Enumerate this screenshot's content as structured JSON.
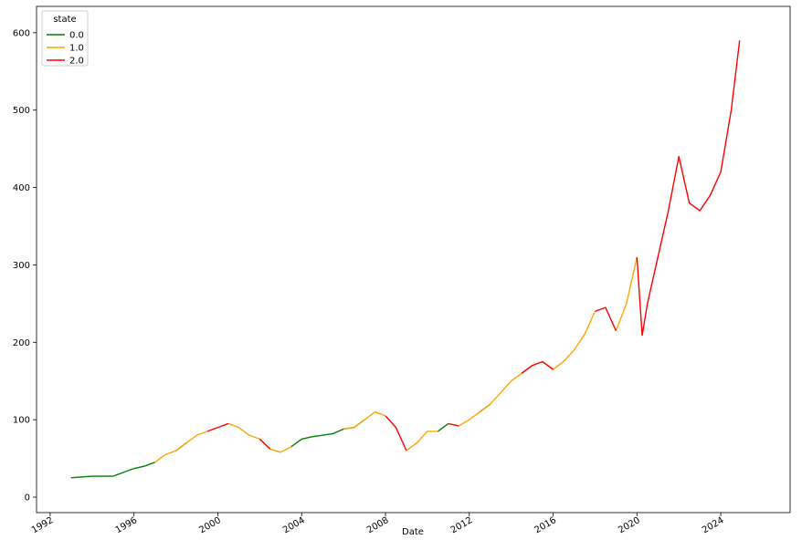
{
  "chart_data": {
    "type": "line",
    "x_label": "Date",
    "legend_title": "state",
    "legend": "upper left",
    "x": [
      1993.0,
      1993.5,
      1994.0,
      1994.5,
      1995.0,
      1995.5,
      1996.0,
      1996.5,
      1997.0,
      1997.5,
      1998.0,
      1998.5,
      1999.0,
      1999.5,
      2000.0,
      2000.5,
      2001.0,
      2001.5,
      2002.0,
      2002.5,
      2003.0,
      2003.5,
      2004.0,
      2004.5,
      2005.0,
      2005.5,
      2006.0,
      2006.5,
      2007.0,
      2007.5,
      2008.0,
      2008.5,
      2009.0,
      2009.5,
      2010.0,
      2010.5,
      2011.0,
      2011.5,
      2012.0,
      2012.5,
      2013.0,
      2013.5,
      2014.0,
      2014.5,
      2015.0,
      2015.5,
      2016.0,
      2016.5,
      2017.0,
      2017.5,
      2018.0,
      2018.5,
      2019.0,
      2019.5,
      2020.0,
      2020.25,
      2020.5,
      2021.0,
      2021.5,
      2022.0,
      2022.5,
      2023.0,
      2023.5,
      2024.0,
      2024.5,
      2024.9
    ],
    "series": [
      {
        "name": "0.0",
        "color": "#008000",
        "values": [
          25,
          26,
          27,
          27,
          27,
          32,
          37,
          40,
          45,
          null,
          60,
          70,
          null,
          null,
          null,
          null,
          null,
          null,
          null,
          null,
          null,
          65,
          75,
          78,
          80,
          82,
          88,
          90,
          100,
          null,
          null,
          null,
          null,
          null,
          null,
          85,
          95,
          null,
          null,
          110,
          120,
          null,
          null,
          null,
          null,
          null,
          null,
          null,
          null,
          null,
          null,
          null,
          null,
          null,
          null,
          null,
          null,
          null,
          null,
          null,
          null,
          null,
          null,
          null,
          null,
          null
        ]
      },
      {
        "name": "1.0",
        "color": "#ffa500",
        "values": [
          null,
          null,
          null,
          null,
          null,
          null,
          null,
          null,
          45,
          55,
          60,
          70,
          80,
          85,
          null,
          95,
          90,
          80,
          75,
          62,
          58,
          65,
          null,
          null,
          null,
          null,
          88,
          90,
          100,
          110,
          105,
          null,
          60,
          70,
          85,
          85,
          null,
          92,
          100,
          110,
          120,
          135,
          150,
          160,
          170,
          175,
          165,
          175,
          190,
          210,
          240,
          null,
          215,
          250,
          310,
          null,
          null,
          null,
          null,
          null,
          null,
          null,
          null,
          null,
          null,
          null
        ]
      },
      {
        "name": "2.0",
        "color": "#ff0000",
        "values": [
          null,
          null,
          null,
          null,
          null,
          null,
          null,
          null,
          null,
          null,
          null,
          null,
          null,
          85,
          90,
          95,
          null,
          null,
          75,
          62,
          null,
          null,
          null,
          null,
          null,
          null,
          null,
          null,
          null,
          null,
          105,
          90,
          60,
          null,
          null,
          null,
          95,
          92,
          null,
          null,
          null,
          null,
          null,
          160,
          170,
          175,
          165,
          null,
          null,
          null,
          240,
          245,
          215,
          null,
          310,
          209,
          250,
          310,
          370,
          440,
          380,
          370,
          390,
          420,
          500,
          590
        ]
      }
    ],
    "xlim": [
      1991.35,
      2027.31
    ],
    "xticks": [
      1992,
      1996,
      2000,
      2004,
      2008,
      2012,
      2016,
      2020,
      2024
    ],
    "ylim": [
      -20,
      634
    ],
    "yticks": [
      0,
      100,
      200,
      300,
      400,
      500,
      600
    ]
  }
}
